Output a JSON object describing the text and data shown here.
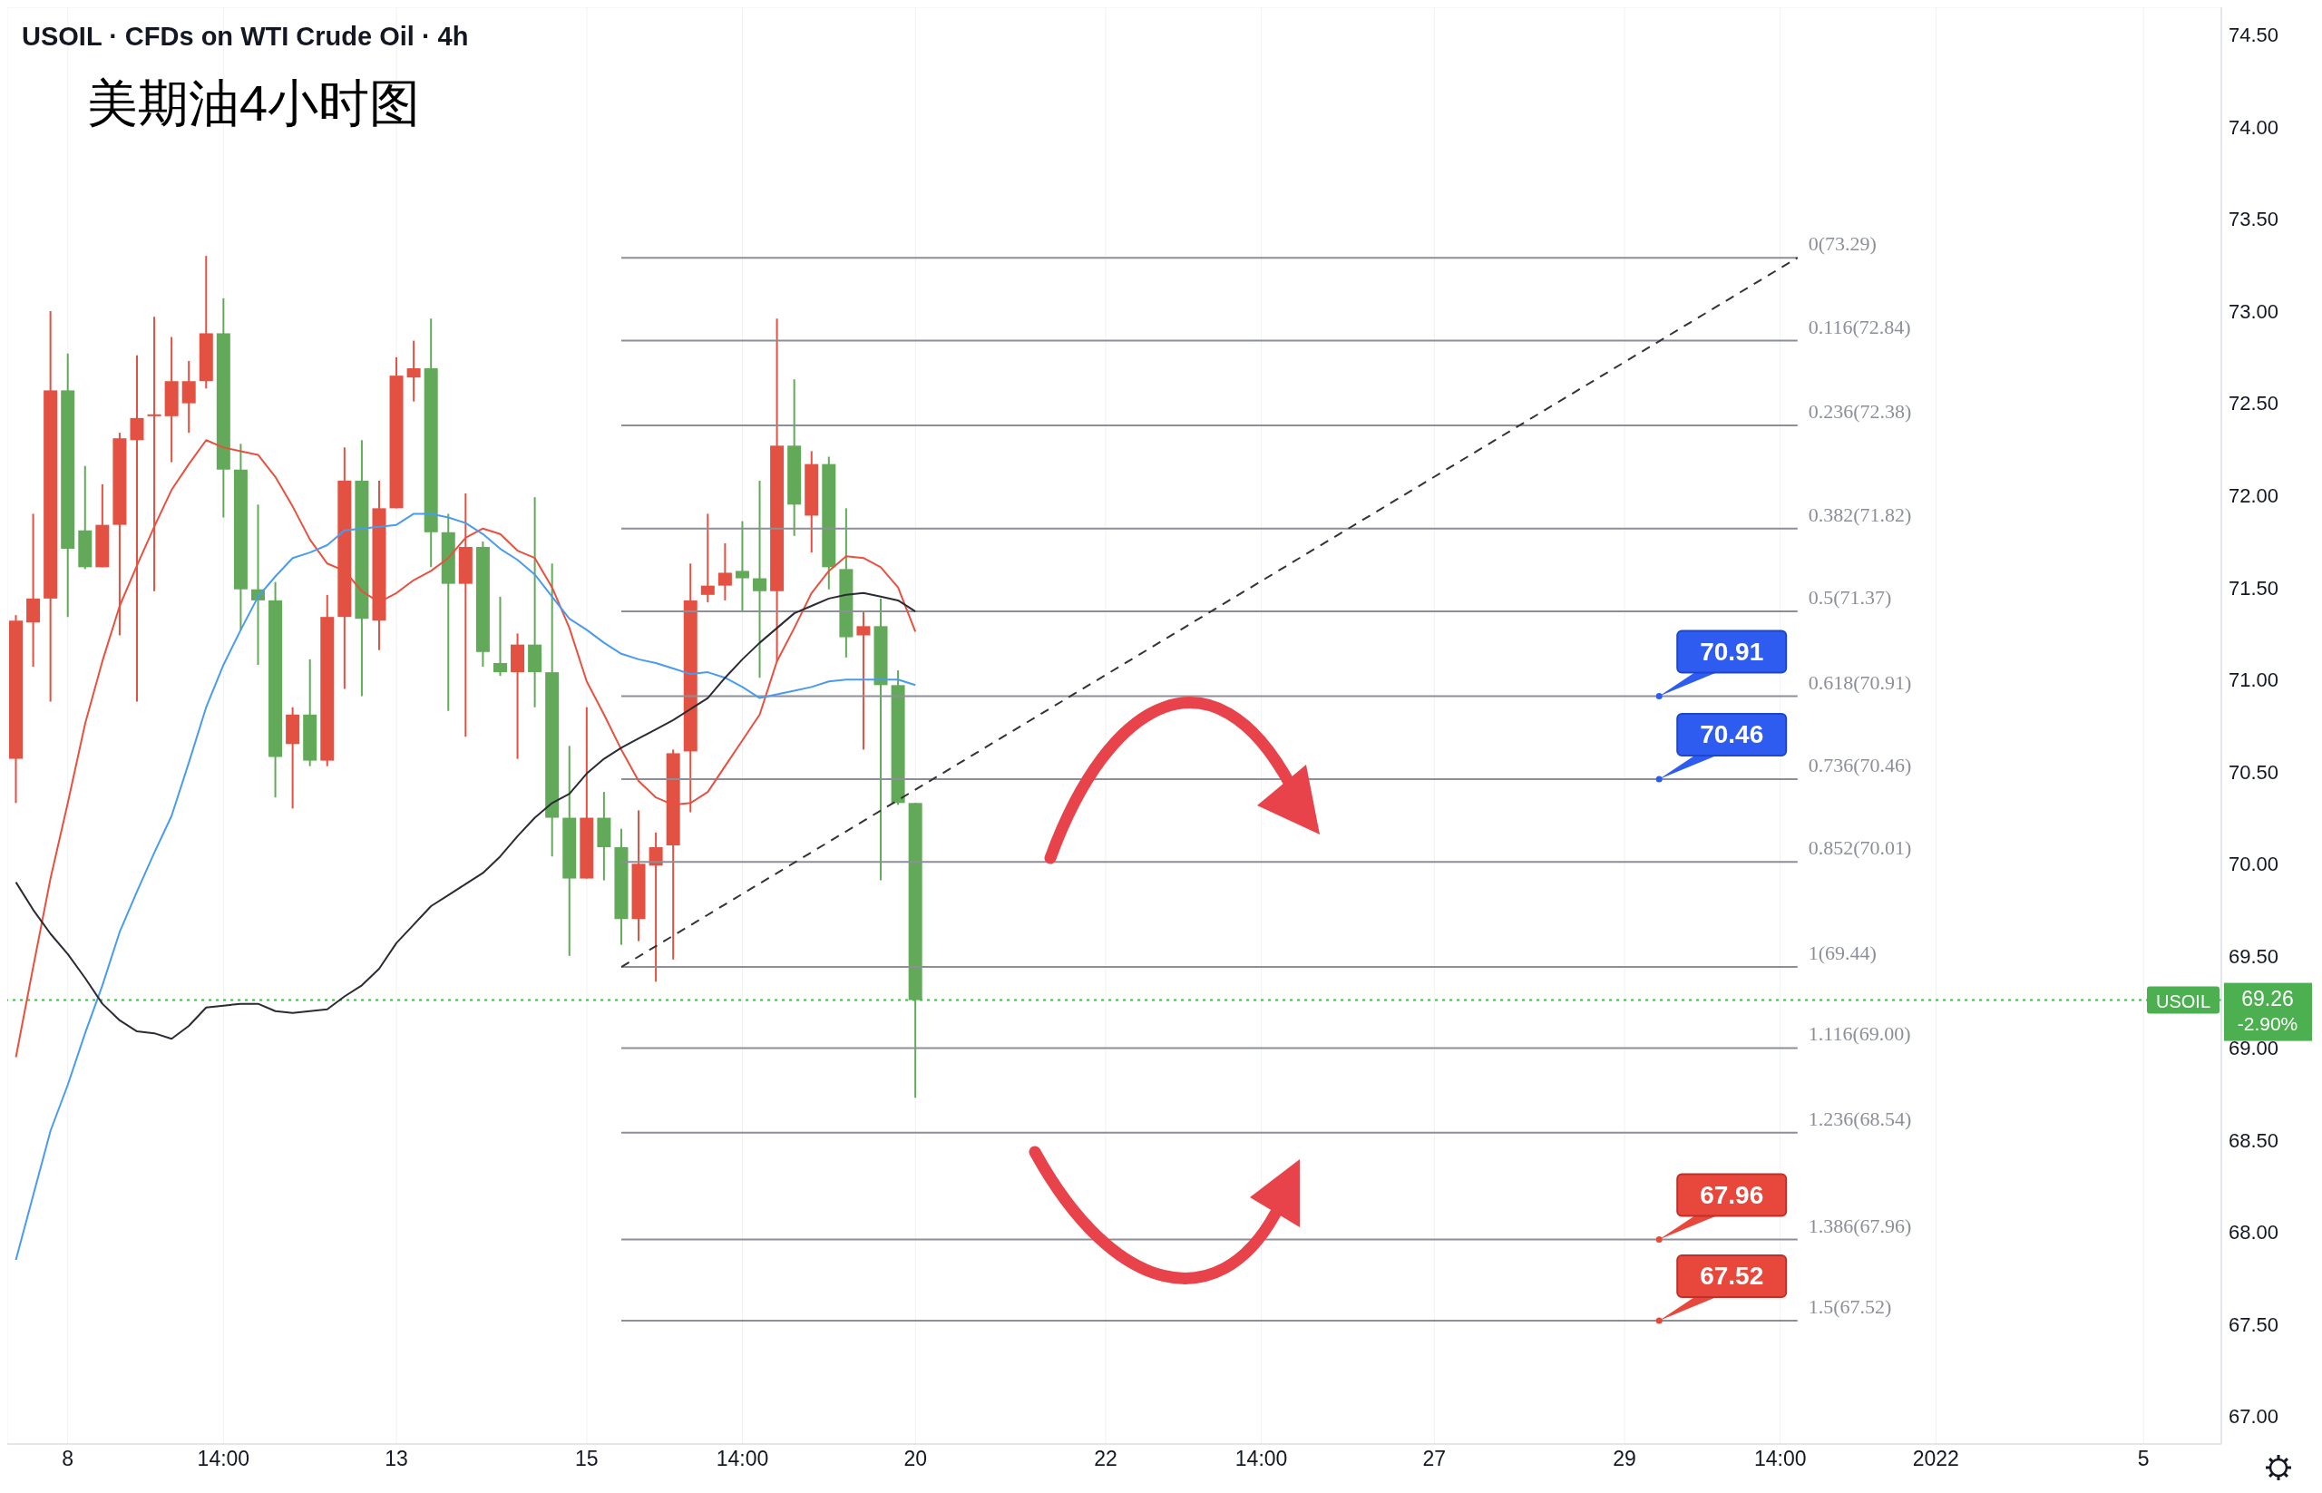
{
  "chart_data": {
    "type": "candlestick",
    "title": "USOIL · CFDs on WTI Crude Oil · 4h",
    "subtitle": "美期油4小时图",
    "categories": [
      null,
      null,
      null,
      "8",
      null,
      null,
      null,
      null,
      null,
      null,
      null,
      null,
      "14:00",
      null,
      null,
      null,
      null,
      null,
      null,
      null,
      null,
      null,
      "13",
      null,
      null,
      null,
      null,
      null,
      null,
      null,
      null,
      null,
      null,
      "15",
      null,
      null,
      null,
      null,
      null,
      null,
      null,
      null,
      "14:00",
      null,
      null,
      null,
      null,
      null,
      null,
      null,
      null,
      null,
      "20",
      null,
      null,
      null,
      null,
      null,
      null,
      null,
      null,
      null,
      null,
      "22",
      null,
      null,
      null,
      null,
      null,
      null,
      null,
      null,
      "14:00",
      null,
      null,
      null,
      null,
      null,
      null,
      null,
      null,
      null,
      "27",
      null,
      null,
      null,
      null,
      null,
      null,
      null,
      null,
      null,
      null,
      "29",
      null,
      null,
      null,
      null,
      null,
      null,
      null,
      null,
      "14:00",
      null,
      null,
      null,
      null,
      null,
      null,
      null,
      null,
      "2022",
      null,
      null,
      null,
      null,
      null,
      null,
      null,
      null,
      null,
      null,
      null,
      "5",
      null,
      null,
      null,
      null
    ],
    "ohlc": [
      [
        70.57,
        71.35,
        70.33,
        71.32
      ],
      [
        71.31,
        71.9,
        71.07,
        71.44
      ],
      [
        71.44,
        73.0,
        70.88,
        72.57
      ],
      [
        72.57,
        72.77,
        71.34,
        71.71
      ],
      [
        71.81,
        72.16,
        71.6,
        71.61
      ],
      [
        71.61,
        72.06,
        71.61,
        71.84
      ],
      [
        71.84,
        72.34,
        71.24,
        72.31
      ],
      [
        72.3,
        72.76,
        70.88,
        72.42
      ],
      [
        72.43,
        72.97,
        71.48,
        72.44
      ],
      [
        72.43,
        72.86,
        72.18,
        72.62
      ],
      [
        72.5,
        72.73,
        72.34,
        72.62
      ],
      [
        72.62,
        73.3,
        72.58,
        72.88
      ],
      [
        72.88,
        73.07,
        71.88,
        72.14
      ],
      [
        72.14,
        72.28,
        71.27,
        71.49
      ],
      [
        71.49,
        71.95,
        71.08,
        71.43
      ],
      [
        71.43,
        71.53,
        70.36,
        70.58
      ],
      [
        70.65,
        70.85,
        70.3,
        70.81
      ],
      [
        70.81,
        71.11,
        70.53,
        70.56
      ],
      [
        70.56,
        71.46,
        70.53,
        71.34
      ],
      [
        71.34,
        72.26,
        70.95,
        72.08
      ],
      [
        72.08,
        72.3,
        70.91,
        71.33
      ],
      [
        71.32,
        72.08,
        71.16,
        71.93
      ],
      [
        71.93,
        72.75,
        71.93,
        72.65
      ],
      [
        72.64,
        72.84,
        72.51,
        72.69
      ],
      [
        72.69,
        72.96,
        71.61,
        71.8
      ],
      [
        71.8,
        71.9,
        70.83,
        71.52
      ],
      [
        71.52,
        72.01,
        70.69,
        71.72
      ],
      [
        71.72,
        71.75,
        71.07,
        71.15
      ],
      [
        71.09,
        71.45,
        71.02,
        71.04
      ],
      [
        71.04,
        71.25,
        70.57,
        71.19
      ],
      [
        71.19,
        71.99,
        70.85,
        71.04
      ],
      [
        71.04,
        71.63,
        70.04,
        70.25
      ],
      [
        70.25,
        70.64,
        69.5,
        69.92
      ],
      [
        69.92,
        70.85,
        69.92,
        70.25
      ],
      [
        70.25,
        70.39,
        69.91,
        70.09
      ],
      [
        70.09,
        70.19,
        69.56,
        69.7
      ],
      [
        69.7,
        70.29,
        69.58,
        70.0
      ],
      [
        69.99,
        70.17,
        69.36,
        70.09
      ],
      [
        70.1,
        70.62,
        69.48,
        70.6
      ],
      [
        70.61,
        71.63,
        70.28,
        71.43
      ],
      [
        71.46,
        71.9,
        71.42,
        71.51
      ],
      [
        71.51,
        71.74,
        71.43,
        71.58
      ],
      [
        71.59,
        71.86,
        71.37,
        71.55
      ],
      [
        71.55,
        72.08,
        71.01,
        71.48
      ],
      [
        71.48,
        72.96,
        71.1,
        72.27
      ],
      [
        72.27,
        72.63,
        71.78,
        71.95
      ],
      [
        71.89,
        72.24,
        71.69,
        72.17
      ],
      [
        72.17,
        72.21,
        71.49,
        71.61
      ],
      [
        71.6,
        71.93,
        71.12,
        71.23
      ],
      [
        71.24,
        71.37,
        70.62,
        71.29
      ],
      [
        71.29,
        71.44,
        69.91,
        70.97
      ],
      [
        70.97,
        71.05,
        70.32,
        70.33
      ],
      [
        70.33,
        70.33,
        68.73,
        69.26
      ],
      null,
      null,
      null,
      null,
      null,
      null,
      null,
      null,
      null,
      null,
      null,
      null,
      null,
      null,
      null,
      null,
      null,
      null,
      null,
      null,
      null,
      null,
      null,
      null,
      null,
      null,
      null,
      null,
      null,
      null,
      null,
      null,
      null,
      null,
      null,
      null,
      null,
      null,
      null,
      null,
      null,
      null,
      null,
      null,
      null,
      null,
      null,
      null,
      null,
      null,
      null,
      null,
      null,
      null,
      null,
      null,
      null,
      null,
      null,
      null,
      null,
      null,
      null,
      null,
      null,
      null,
      null,
      null,
      null,
      null,
      null,
      null,
      null,
      null,
      null
    ],
    "colors": [
      "#e25141",
      "#e25141",
      "#e25141",
      "#62aa59",
      "#62aa59",
      "#e25141",
      "#e25141",
      "#e25141",
      "#e25141",
      "#e25141",
      "#e25141",
      "#e25141",
      "#62aa59",
      "#62aa59",
      "#62aa59",
      "#62aa59",
      "#e25141",
      "#62aa59",
      "#e25141",
      "#e25141",
      "#62aa59",
      "#e25141",
      "#e25141",
      "#e25141",
      "#62aa59",
      "#62aa59",
      "#e25141",
      "#62aa59",
      "#62aa59",
      "#e25141",
      "#62aa59",
      "#62aa59",
      "#62aa59",
      "#e25141",
      "#62aa59",
      "#62aa59",
      "#e25141",
      "#e25141",
      "#e25141",
      "#e25141",
      "#e25141",
      "#e25141",
      "#62aa59",
      "#62aa59",
      "#e25141",
      "#62aa59",
      "#e25141",
      "#62aa59",
      "#62aa59",
      "#e25141",
      "#62aa59",
      "#62aa59",
      "#62aa59",
      null,
      null,
      null,
      null,
      null,
      null,
      null,
      null,
      null,
      null,
      null,
      null,
      null,
      null,
      null,
      null,
      null,
      null,
      null,
      null,
      null,
      null,
      null,
      null,
      null,
      null,
      null,
      null,
      null,
      null,
      null,
      null,
      null,
      null,
      null,
      null,
      null,
      null,
      null,
      null,
      null,
      null,
      null,
      null,
      null,
      null,
      null,
      null,
      null,
      null,
      null,
      null,
      null,
      null,
      null,
      null,
      null,
      null,
      null,
      null,
      null,
      null,
      null,
      null,
      null,
      null,
      null,
      null,
      null,
      null,
      null,
      null,
      null,
      null,
      null
    ],
    "series": [
      {
        "type": "line",
        "color": "#e8503f",
        "values": [
          68.95,
          69.44,
          69.92,
          70.33,
          70.76,
          71.1,
          71.4,
          71.62,
          71.83,
          72.03,
          72.17,
          72.3,
          72.26,
          72.24,
          72.22,
          72.1,
          71.94,
          71.76,
          71.63,
          71.59,
          71.48,
          71.42,
          71.47,
          71.54,
          71.59,
          71.66,
          71.77,
          71.82,
          71.79,
          71.7,
          71.66,
          71.5,
          71.28,
          70.99,
          70.81,
          70.62,
          70.45,
          70.36,
          70.32,
          70.33,
          70.39,
          70.53,
          70.67,
          70.81,
          71.1,
          71.28,
          71.47,
          71.59,
          71.67,
          71.66,
          71.61,
          71.5,
          71.26,
          null,
          null,
          null,
          null,
          null,
          null,
          null,
          null,
          null,
          null,
          null,
          null,
          null,
          null,
          null,
          null,
          null,
          null,
          null,
          null,
          null,
          null,
          null,
          null,
          null,
          null,
          null,
          null,
          null,
          null,
          null,
          null,
          null,
          null,
          null,
          null,
          null,
          null,
          null,
          null,
          null,
          null,
          null,
          null,
          null,
          null,
          null,
          null,
          null,
          null,
          null,
          null,
          null,
          null,
          null,
          null,
          null,
          null,
          null,
          null,
          null,
          null,
          null,
          null,
          null,
          null,
          null,
          null,
          null,
          null,
          null,
          null,
          null,
          null,
          null
        ]
      },
      {
        "type": "line",
        "color": "#4a9bf0",
        "values": [
          67.85,
          68.2,
          68.55,
          68.8,
          69.08,
          69.34,
          69.63,
          69.85,
          70.06,
          70.26,
          70.55,
          70.85,
          71.08,
          71.27,
          71.45,
          71.56,
          71.66,
          71.69,
          71.73,
          71.81,
          71.82,
          71.83,
          71.84,
          71.9,
          71.9,
          71.88,
          71.85,
          71.79,
          71.71,
          71.65,
          71.57,
          71.45,
          71.33,
          71.27,
          71.2,
          71.14,
          71.11,
          71.09,
          71.06,
          71.03,
          71.04,
          71.01,
          70.96,
          70.9,
          70.92,
          70.94,
          70.96,
          70.99,
          71.0,
          71.0,
          71.0,
          71.0,
          70.97,
          null,
          null,
          null,
          null,
          null,
          null,
          null,
          null,
          null,
          null,
          null,
          null,
          null,
          null,
          null,
          null,
          null,
          null,
          null,
          null,
          null,
          null,
          null,
          null,
          null,
          null,
          null,
          null,
          null,
          null,
          null,
          null,
          null,
          null,
          null,
          null,
          null,
          null,
          null,
          null,
          null,
          null,
          null,
          null,
          null,
          null,
          null,
          null,
          null,
          null,
          null,
          null,
          null,
          null,
          null,
          null,
          null,
          null,
          null,
          null,
          null,
          null,
          null,
          null,
          null,
          null,
          null,
          null,
          null,
          null,
          null,
          null,
          null,
          null,
          null
        ]
      },
      {
        "type": "line",
        "color": "#2b2b33",
        "values": [
          69.9,
          69.75,
          69.62,
          69.51,
          69.38,
          69.24,
          69.15,
          69.09,
          69.08,
          69.05,
          69.12,
          69.22,
          69.23,
          69.24,
          69.24,
          69.2,
          69.19,
          69.2,
          69.21,
          69.28,
          69.34,
          69.43,
          69.57,
          69.67,
          69.77,
          69.83,
          69.89,
          69.95,
          70.04,
          70.15,
          70.25,
          70.33,
          70.38,
          70.49,
          70.57,
          70.63,
          70.68,
          70.73,
          70.78,
          70.84,
          70.9,
          71.01,
          71.11,
          71.2,
          71.28,
          71.36,
          71.4,
          71.44,
          71.46,
          71.47,
          71.45,
          71.43,
          71.37,
          null,
          null,
          null,
          null,
          null,
          null,
          null,
          null,
          null,
          null,
          null,
          null,
          null,
          null,
          null,
          null,
          null,
          null,
          null,
          null,
          null,
          null,
          null,
          null,
          null,
          null,
          null,
          null,
          null,
          null,
          null,
          null,
          null,
          null,
          null,
          null,
          null,
          null,
          null,
          null,
          null,
          null,
          null,
          null,
          null,
          null,
          null,
          null,
          null,
          null,
          null,
          null,
          null,
          null,
          null,
          null,
          null,
          null,
          null,
          null,
          null,
          null,
          null,
          null,
          null,
          null,
          null,
          null,
          null,
          null,
          null,
          null,
          null,
          null,
          null
        ]
      },
      {
        "type": "line",
        "color": "#333333",
        "line_style": "dashed",
        "values": [
          null,
          null,
          null,
          null,
          null,
          null,
          null,
          null,
          null,
          null,
          null,
          null,
          null,
          null,
          null,
          null,
          null,
          null,
          null,
          null,
          null,
          null,
          null,
          null,
          null,
          null,
          null,
          null,
          null,
          null,
          null,
          null,
          null,
          null,
          null,
          69.44,
          null,
          null,
          null,
          null,
          null,
          null,
          null,
          null,
          null,
          null,
          null,
          null,
          null,
          null,
          null,
          null,
          null,
          null,
          null,
          null,
          null,
          null,
          null,
          null,
          null,
          null,
          null,
          null,
          null,
          null,
          null,
          null,
          null,
          null,
          null,
          null,
          null,
          null,
          null,
          null,
          null,
          null,
          null,
          null,
          null,
          null,
          null,
          null,
          null,
          null,
          null,
          null,
          null,
          null,
          null,
          null,
          null,
          null,
          null,
          null,
          null,
          null,
          null,
          null,
          null,
          null,
          null,
          73.29,
          null,
          null,
          null,
          null,
          null,
          null,
          null,
          null,
          null,
          null,
          null,
          null,
          null,
          null,
          null,
          null,
          null,
          null,
          null,
          null,
          null,
          null,
          null,
          null
        ]
      }
    ],
    "ylim": [
      66.85,
      74.65
    ],
    "yticks": [
      {
        "value": 67,
        "label": "67.00"
      },
      {
        "value": 67.5,
        "label": "67.50"
      },
      {
        "value": 68,
        "label": "68.00"
      },
      {
        "value": 68.5,
        "label": "68.50"
      },
      {
        "value": 69,
        "label": "69.00"
      },
      {
        "value": 69.5,
        "label": "69.50"
      },
      {
        "value": 70,
        "label": "70.00"
      },
      {
        "value": 70.5,
        "label": "70.50"
      },
      {
        "value": 71,
        "label": "71.00"
      },
      {
        "value": 71.5,
        "label": "71.50"
      },
      {
        "value": 72,
        "label": "72.00"
      },
      {
        "value": 72.5,
        "label": "72.50"
      },
      {
        "value": 73,
        "label": "73.00"
      },
      {
        "value": 73.5,
        "label": "73.50"
      },
      {
        "value": 74,
        "label": "74.00"
      },
      {
        "value": 74.5,
        "label": "74.50"
      }
    ],
    "grid": true,
    "ref_lines": [
      {
        "axis": "y",
        "value": 73.29,
        "label": "0(73.29)",
        "color": "#8c8f99"
      },
      {
        "axis": "y",
        "value": 72.84,
        "label": "0.116(72.84)",
        "color": "#8c8f99"
      },
      {
        "axis": "y",
        "value": 72.38,
        "label": "0.236(72.38)",
        "color": "#8c8f99"
      },
      {
        "axis": "y",
        "value": 71.82,
        "label": "0.382(71.82)",
        "color": "#8c8f99"
      },
      {
        "axis": "y",
        "value": 71.37,
        "label": "0.5(71.37)",
        "color": "#8c8f99"
      },
      {
        "axis": "y",
        "value": 70.91,
        "label": "0.618(70.91)",
        "color": "#8c8f99"
      },
      {
        "axis": "y",
        "value": 70.46,
        "label": "0.736(70.46)",
        "color": "#8c8f99"
      },
      {
        "axis": "y",
        "value": 70.01,
        "label": "0.852(70.01)",
        "color": "#8c8f99"
      },
      {
        "axis": "y",
        "value": 69.44,
        "label": "1(69.44)",
        "color": "#8c8f99"
      },
      {
        "axis": "y",
        "value": 69.0,
        "label": "1.116(69.00)",
        "color": "#8c8f99"
      },
      {
        "axis": "y",
        "value": 68.54,
        "label": "1.236(68.54)",
        "color": "#8c8f99"
      },
      {
        "axis": "y",
        "value": 67.96,
        "label": "1.386(67.96)",
        "color": "#8c8f99"
      },
      {
        "axis": "y",
        "value": 67.52,
        "label": "1.5(67.52)",
        "color": "#8c8f99"
      },
      {
        "axis": "y",
        "value": 69.26,
        "label": "USOIL",
        "color": "#4caf50",
        "line_style": "dotted"
      }
    ],
    "annotations": [
      {
        "text": "70.91",
        "y": 70.91
      },
      {
        "text": "70.46",
        "y": 70.46
      },
      {
        "text": "67.96",
        "y": 67.96
      },
      {
        "text": "67.52",
        "y": 67.52
      },
      "69.26",
      "-2.90%"
    ]
  }
}
